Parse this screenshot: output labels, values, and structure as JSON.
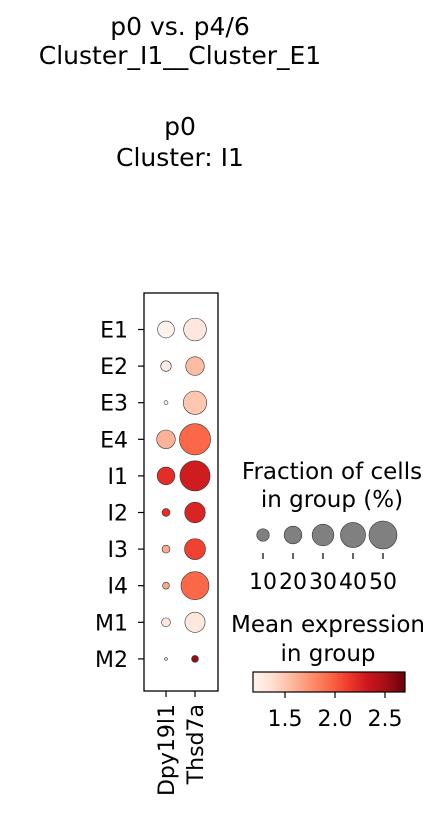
{
  "chart_data": {
    "type": "dotplot",
    "title_lines": [
      "p0 vs. p4/6",
      "Cluster_I1__Cluster_E1",
      "",
      "p0",
      "Cluster: I1"
    ],
    "groups": [
      "E1",
      "E2",
      "E3",
      "E4",
      "I1",
      "I2",
      "I3",
      "I4",
      "M1",
      "M2"
    ],
    "genes": [
      "Dpy19l1",
      "Thsd7a"
    ],
    "values": [
      {
        "group": "E1",
        "gene": "Dpy19l1",
        "fraction_pct": 18,
        "mean_expr": 1.2
      },
      {
        "group": "E1",
        "gene": "Thsd7a",
        "fraction_pct": 33,
        "mean_expr": 1.3
      },
      {
        "group": "E2",
        "gene": "Dpy19l1",
        "fraction_pct": 7,
        "mean_expr": 1.25
      },
      {
        "group": "E2",
        "gene": "Thsd7a",
        "fraction_pct": 22,
        "mean_expr": 1.55
      },
      {
        "group": "E3",
        "gene": "Dpy19l1",
        "fraction_pct": 1,
        "mean_expr": 1.2
      },
      {
        "group": "E3",
        "gene": "Thsd7a",
        "fraction_pct": 35,
        "mean_expr": 1.5
      },
      {
        "group": "E4",
        "gene": "Dpy19l1",
        "fraction_pct": 22,
        "mean_expr": 1.6
      },
      {
        "group": "E4",
        "gene": "Thsd7a",
        "fraction_pct": 62,
        "mean_expr": 1.95
      },
      {
        "group": "I1",
        "gene": "Dpy19l1",
        "fraction_pct": 20,
        "mean_expr": 2.2
      },
      {
        "group": "I1",
        "gene": "Thsd7a",
        "fraction_pct": 58,
        "mean_expr": 2.3
      },
      {
        "group": "I2",
        "gene": "Dpy19l1",
        "fraction_pct": 4,
        "mean_expr": 2.2
      },
      {
        "group": "I2",
        "gene": "Thsd7a",
        "fraction_pct": 27,
        "mean_expr": 2.25
      },
      {
        "group": "I3",
        "gene": "Dpy19l1",
        "fraction_pct": 4,
        "mean_expr": 1.65
      },
      {
        "group": "I3",
        "gene": "Thsd7a",
        "fraction_pct": 28,
        "mean_expr": 2.1
      },
      {
        "group": "I4",
        "gene": "Dpy19l1",
        "fraction_pct": 3,
        "mean_expr": 1.65
      },
      {
        "group": "I4",
        "gene": "Thsd7a",
        "fraction_pct": 50,
        "mean_expr": 1.95
      },
      {
        "group": "M1",
        "gene": "Dpy19l1",
        "fraction_pct": 5,
        "mean_expr": 1.3
      },
      {
        "group": "M1",
        "gene": "Thsd7a",
        "fraction_pct": 26,
        "mean_expr": 1.3
      },
      {
        "group": "M2",
        "gene": "Dpy19l1",
        "fraction_pct": 0.5,
        "mean_expr": 1.4
      },
      {
        "group": "M2",
        "gene": "Thsd7a",
        "fraction_pct": 3,
        "mean_expr": 2.55
      }
    ],
    "size_legend": {
      "title_lines": [
        "Fraction of cells",
        "in group (%)"
      ],
      "values": [
        10,
        20,
        30,
        40,
        50
      ],
      "tick_labels": [
        "10",
        "20",
        "30",
        "40",
        "50"
      ]
    },
    "color_legend": {
      "title_lines": [
        "Mean expression",
        "in group"
      ],
      "colormap": "Reds",
      "range": [
        1.18,
        2.7
      ],
      "ticks": [
        1.5,
        2.0,
        2.5
      ],
      "tick_labels": [
        "1.5",
        "2.0",
        "2.5"
      ]
    },
    "colors": {
      "dot_edge": "#333333",
      "size_legend_dot": "#808080",
      "reds_stops": [
        "#fff5f0",
        "#fee0d2",
        "#fcbba1",
        "#fc9272",
        "#fb6a4a",
        "#ef3b2c",
        "#cb181d",
        "#a50f15",
        "#67000d"
      ]
    }
  }
}
